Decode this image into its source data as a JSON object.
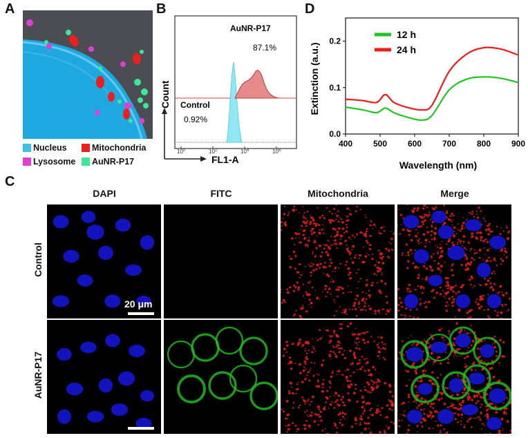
{
  "panel_a": {
    "label": "A",
    "legend": [
      {
        "name": "Nucleus",
        "color": "#3dbfe8"
      },
      {
        "name": "Mitochondria",
        "color": "#e8201e"
      },
      {
        "name": "Lysosome",
        "color": "#e040d0"
      },
      {
        "name": "AuNR-P17",
        "color": "#3de89a"
      }
    ]
  },
  "panel_b": {
    "label": "B",
    "y_label": "Count",
    "x_label": "FL1-A",
    "ticks": [
      "10",
      "10",
      "10",
      "10"
    ],
    "tick_exps": [
      "0",
      "2",
      "4",
      "6"
    ],
    "sample_name": "AuNR-P17",
    "sample_pct": "87.1%",
    "control_name": "Control",
    "control_pct": "0.92%"
  },
  "panel_c": {
    "label": "C",
    "columns": [
      "DAPI",
      "FITC",
      "Mitochondria",
      "Merge"
    ],
    "rows": [
      "Control",
      "AuNR-P17"
    ],
    "scale_bar": "20 μm"
  },
  "chart_data": {
    "type": "line",
    "label": "D",
    "xlabel": "Wavelength (nm)",
    "ylabel": "Extinction (a.u.)",
    "xlim": [
      400,
      900
    ],
    "ylim": [
      0,
      0.25
    ],
    "xticks": [
      "400",
      "500",
      "600",
      "700",
      "800",
      "900"
    ],
    "yticks": [
      "0.0",
      "0.1",
      "0.2"
    ],
    "legend_position": "top-left",
    "series": [
      {
        "name": "12 h",
        "color": "#22c422",
        "x": [
          400,
          450,
          490,
          515,
          540,
          580,
          620,
          650,
          700,
          750,
          800,
          850,
          900
        ],
        "y": [
          0.058,
          0.052,
          0.046,
          0.056,
          0.046,
          0.036,
          0.03,
          0.04,
          0.095,
          0.118,
          0.123,
          0.12,
          0.111
        ]
      },
      {
        "name": "24 h",
        "color": "#ee1a1a",
        "x": [
          400,
          450,
          490,
          515,
          540,
          580,
          620,
          650,
          700,
          750,
          800,
          850,
          900
        ],
        "y": [
          0.075,
          0.072,
          0.068,
          0.085,
          0.068,
          0.057,
          0.052,
          0.062,
          0.135,
          0.172,
          0.186,
          0.183,
          0.17
        ]
      }
    ]
  }
}
